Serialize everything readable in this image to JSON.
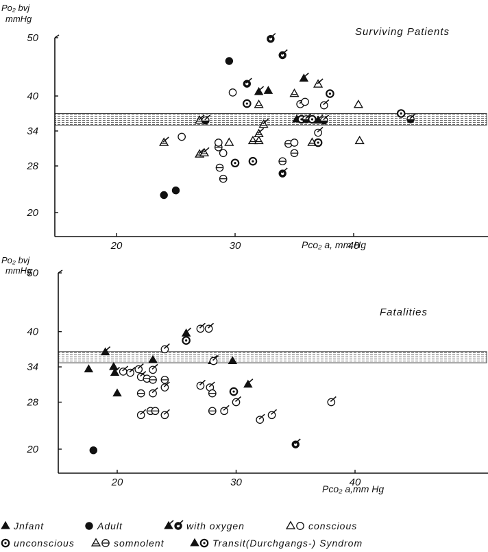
{
  "chart_data": [
    {
      "type": "scatter",
      "title": "Surviving Patients",
      "ylabel_main": "Po₂ bvj",
      "ylabel_unit": "mmHg",
      "xlabel": "Pco₂ a, mm Hg",
      "xlim": [
        15,
        50
      ],
      "ylim": [
        18,
        50
      ],
      "xticks": [
        20,
        30,
        40
      ],
      "yticks": [
        20,
        28,
        34,
        40,
        50
      ],
      "normal_band": [
        35,
        37
      ],
      "points": [
        {
          "x": 24.0,
          "y": 23.0,
          "m": "adult"
        },
        {
          "x": 25.0,
          "y": 23.8,
          "m": "adult"
        },
        {
          "x": 29.5,
          "y": 46.0,
          "m": "adult"
        },
        {
          "x": 33.0,
          "y": 49.8,
          "m": "adult-ox"
        },
        {
          "x": 34.0,
          "y": 47.0,
          "m": "adult-ox"
        },
        {
          "x": 29.8,
          "y": 40.6,
          "m": "ring"
        },
        {
          "x": 31.0,
          "y": 42.1,
          "m": "adult-ox"
        },
        {
          "x": 31.0,
          "y": 38.7,
          "m": "dotring"
        },
        {
          "x": 32.0,
          "y": 40.7,
          "m": "tri-fill-ox"
        },
        {
          "x": 32.8,
          "y": 40.9,
          "m": "tri-fill"
        },
        {
          "x": 32.0,
          "y": 38.5,
          "m": "tri-line"
        },
        {
          "x": 35.8,
          "y": 43.0,
          "m": "tri-fill-ox"
        },
        {
          "x": 35.0,
          "y": 40.4,
          "m": "tri-line"
        },
        {
          "x": 35.5,
          "y": 38.6,
          "m": "ring-ox"
        },
        {
          "x": 35.9,
          "y": 39.0,
          "m": "ring"
        },
        {
          "x": 37.0,
          "y": 42.0,
          "m": "tri-open-ox"
        },
        {
          "x": 38.0,
          "y": 40.4,
          "m": "dotring"
        },
        {
          "x": 37.5,
          "y": 38.4,
          "m": "ring-ox"
        },
        {
          "x": 40.4,
          "y": 38.5,
          "m": "tri-open"
        },
        {
          "x": 27.0,
          "y": 35.8,
          "m": "tri-line-ox"
        },
        {
          "x": 27.5,
          "y": 35.8,
          "m": "half-ox"
        },
        {
          "x": 35.2,
          "y": 36.0,
          "m": "tri-fill"
        },
        {
          "x": 35.6,
          "y": 36.0,
          "m": "dotring"
        },
        {
          "x": 36.0,
          "y": 36.0,
          "m": "half-ox"
        },
        {
          "x": 36.5,
          "y": 36.0,
          "m": "dotring"
        },
        {
          "x": 37.0,
          "y": 35.8,
          "m": "tri-fill-ox"
        },
        {
          "x": 37.5,
          "y": 35.8,
          "m": "half-ox"
        },
        {
          "x": 44.0,
          "y": 37.0,
          "m": "dotring"
        },
        {
          "x": 44.8,
          "y": 36.0,
          "m": "half-ox"
        },
        {
          "x": 24.0,
          "y": 32.0,
          "m": "tri-line-ox"
        },
        {
          "x": 25.5,
          "y": 33.0,
          "m": "ring"
        },
        {
          "x": 27.0,
          "y": 30.0,
          "m": "tri-line-ox"
        },
        {
          "x": 27.4,
          "y": 30.2,
          "m": "tri-line-ox"
        },
        {
          "x": 28.6,
          "y": 31.2,
          "m": "half"
        },
        {
          "x": 28.6,
          "y": 32.0,
          "m": "ring"
        },
        {
          "x": 29.0,
          "y": 30.2,
          "m": "ring"
        },
        {
          "x": 29.5,
          "y": 32.0,
          "m": "tri-open"
        },
        {
          "x": 31.5,
          "y": 32.3,
          "m": "tri-line"
        },
        {
          "x": 32.0,
          "y": 32.3,
          "m": "tri-line"
        },
        {
          "x": 32.0,
          "y": 33.5,
          "m": "tri-line-ox"
        },
        {
          "x": 32.4,
          "y": 35.1,
          "m": "tri-line-ox"
        },
        {
          "x": 29.0,
          "y": 25.8,
          "m": "half"
        },
        {
          "x": 28.7,
          "y": 27.7,
          "m": "half"
        },
        {
          "x": 30.0,
          "y": 28.5,
          "m": "dotring"
        },
        {
          "x": 31.5,
          "y": 28.8,
          "m": "dotring"
        },
        {
          "x": 34.0,
          "y": 26.7,
          "m": "adult-ox"
        },
        {
          "x": 34.0,
          "y": 28.8,
          "m": "half"
        },
        {
          "x": 34.5,
          "y": 31.8,
          "m": "half"
        },
        {
          "x": 35.0,
          "y": 30.2,
          "m": "half"
        },
        {
          "x": 35.0,
          "y": 32.0,
          "m": "ring"
        },
        {
          "x": 36.5,
          "y": 32.0,
          "m": "tri-line"
        },
        {
          "x": 37.0,
          "y": 32.0,
          "m": "dotring"
        },
        {
          "x": 37.0,
          "y": 33.7,
          "m": "ring-ox"
        },
        {
          "x": 40.5,
          "y": 32.3,
          "m": "tri-open"
        }
      ]
    },
    {
      "type": "scatter",
      "title": "Fatalities",
      "ylabel_main": "Po₂ bvj",
      "ylabel_unit": "mmHg",
      "xlabel": "Pco₂ a,mm Hg",
      "xlim": [
        15,
        50
      ],
      "ylim": [
        18,
        50
      ],
      "xticks": [
        20,
        30,
        40
      ],
      "yticks": [
        20,
        28,
        34,
        40,
        50
      ],
      "normal_band": [
        34.7,
        36.6
      ],
      "points": [
        {
          "x": 18.0,
          "y": 19.8,
          "m": "adult"
        },
        {
          "x": 19.0,
          "y": 36.5,
          "m": "tri-fill-ox"
        },
        {
          "x": 17.6,
          "y": 33.6,
          "m": "tri-fill"
        },
        {
          "x": 19.7,
          "y": 34.0,
          "m": "tri-fill"
        },
        {
          "x": 19.8,
          "y": 33.0,
          "m": "tri-fill-ox"
        },
        {
          "x": 20.0,
          "y": 29.5,
          "m": "tri-fill"
        },
        {
          "x": 20.5,
          "y": 33.2,
          "m": "ring-ox"
        },
        {
          "x": 21.1,
          "y": 33.0,
          "m": "ring-ox"
        },
        {
          "x": 21.8,
          "y": 33.6,
          "m": "ring-ox"
        },
        {
          "x": 22.0,
          "y": 32.3,
          "m": "ring-ox"
        },
        {
          "x": 22.5,
          "y": 32.0,
          "m": "half"
        },
        {
          "x": 23.0,
          "y": 35.2,
          "m": "tri-fill"
        },
        {
          "x": 23.0,
          "y": 33.5,
          "m": "ring-ox"
        },
        {
          "x": 22.0,
          "y": 29.5,
          "m": "half"
        },
        {
          "x": 23.0,
          "y": 29.5,
          "m": "ring-ox"
        },
        {
          "x": 23.0,
          "y": 31.8,
          "m": "half"
        },
        {
          "x": 24.0,
          "y": 30.5,
          "m": "ring-ox"
        },
        {
          "x": 24.0,
          "y": 31.8,
          "m": "half"
        },
        {
          "x": 24.0,
          "y": 37.0,
          "m": "ring-ox"
        },
        {
          "x": 25.8,
          "y": 39.7,
          "m": "tri-fill-ox"
        },
        {
          "x": 25.8,
          "y": 38.5,
          "m": "dotring"
        },
        {
          "x": 27.0,
          "y": 40.5,
          "m": "ring-ox"
        },
        {
          "x": 27.7,
          "y": 40.5,
          "m": "ring-ox"
        },
        {
          "x": 27.0,
          "y": 30.8,
          "m": "ring-ox"
        },
        {
          "x": 27.8,
          "y": 30.5,
          "m": "ring-ox"
        },
        {
          "x": 28.0,
          "y": 29.5,
          "m": "half"
        },
        {
          "x": 28.0,
          "y": 35.0,
          "m": "tri-fill-ox"
        },
        {
          "x": 28.1,
          "y": 35.0,
          "m": "ring-ox"
        },
        {
          "x": 29.7,
          "y": 35.0,
          "m": "tri-fill"
        },
        {
          "x": 29.8,
          "y": 29.8,
          "m": "dotring"
        },
        {
          "x": 30.0,
          "y": 28.0,
          "m": "ring-ox"
        },
        {
          "x": 31.0,
          "y": 31.0,
          "m": "tri-fill-ox"
        },
        {
          "x": 22.0,
          "y": 25.8,
          "m": "ring-ox"
        },
        {
          "x": 22.8,
          "y": 26.5,
          "m": "half"
        },
        {
          "x": 23.2,
          "y": 26.5,
          "m": "half"
        },
        {
          "x": 24.0,
          "y": 25.8,
          "m": "ring-ox"
        },
        {
          "x": 28.0,
          "y": 26.5,
          "m": "half"
        },
        {
          "x": 29.0,
          "y": 26.5,
          "m": "ring-ox"
        },
        {
          "x": 32.0,
          "y": 25.0,
          "m": "ring-ox"
        },
        {
          "x": 33.0,
          "y": 25.8,
          "m": "ring-ox"
        },
        {
          "x": 35.0,
          "y": 20.8,
          "m": "adult-ox"
        },
        {
          "x": 38.0,
          "y": 28.0,
          "m": "ring-ox"
        }
      ]
    }
  ],
  "legend": {
    "row1": [
      {
        "symbol": "tri-fill",
        "label": "Jnfant"
      },
      {
        "symbol": "adult",
        "label": "Adult"
      },
      {
        "symbol": "tri-fill-ox",
        "symbol2": "adult-ox",
        "label": "with oxygen"
      },
      {
        "symbol": "tri-open",
        "symbol2": "ring",
        "label": "conscious"
      }
    ],
    "row2": [
      {
        "symbol": "dotring",
        "label": "unconscious"
      },
      {
        "symbol": "tri-line",
        "symbol2": "half",
        "label": "somnolent"
      },
      {
        "symbol": "tri-fill",
        "symbol2": "dotring",
        "label": "Transit(Durchgangs-) Syndrom"
      }
    ]
  },
  "colors": {
    "ink": "#111111",
    "band": "#777777",
    "paper": "#ffffff"
  }
}
